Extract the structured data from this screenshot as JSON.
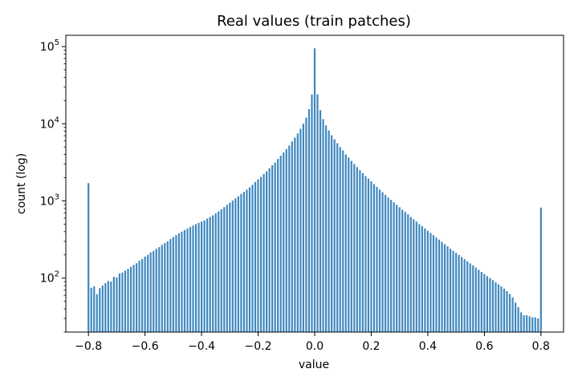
{
  "chart_data": {
    "type": "bar",
    "title": "Real values (train patches)",
    "xlabel": "value",
    "ylabel": "count (log)",
    "xlim": [
      -0.88,
      0.88
    ],
    "ylim": [
      20,
      140000
    ],
    "yscale": "log",
    "x_ticks": [
      -0.8,
      -0.6,
      -0.4,
      -0.2,
      0.0,
      0.2,
      0.4,
      0.6,
      0.8
    ],
    "x_tick_labels": [
      "−0.8",
      "−0.6",
      "−0.4",
      "−0.2",
      "0.0",
      "0.2",
      "0.4",
      "0.6",
      "0.8"
    ],
    "y_ticks": [
      {
        "value": 100,
        "base": "10",
        "exp": "2"
      },
      {
        "value": 1000,
        "base": "10",
        "exp": "3"
      },
      {
        "value": 10000,
        "base": "10",
        "exp": "4"
      },
      {
        "value": 100000,
        "base": "10",
        "exp": "5"
      }
    ],
    "bar_color": "#3f88bf",
    "bin_width": 0.00625,
    "grid": false,
    "series": [
      {
        "values": [
          {
            "x": -0.8,
            "y": 1700
          },
          {
            "x": -0.79,
            "y": 75
          },
          {
            "x": -0.78,
            "y": 78
          },
          {
            "x": -0.77,
            "y": 62
          },
          {
            "x": -0.76,
            "y": 74
          },
          {
            "x": -0.75,
            "y": 80
          },
          {
            "x": -0.74,
            "y": 86
          },
          {
            "x": -0.73,
            "y": 92
          },
          {
            "x": -0.72,
            "y": 90
          },
          {
            "x": -0.71,
            "y": 104
          },
          {
            "x": -0.7,
            "y": 102
          },
          {
            "x": -0.69,
            "y": 115
          },
          {
            "x": -0.68,
            "y": 118
          },
          {
            "x": -0.67,
            "y": 125
          },
          {
            "x": -0.66,
            "y": 132
          },
          {
            "x": -0.65,
            "y": 140
          },
          {
            "x": -0.64,
            "y": 148
          },
          {
            "x": -0.63,
            "y": 156
          },
          {
            "x": -0.62,
            "y": 168
          },
          {
            "x": -0.61,
            "y": 176
          },
          {
            "x": -0.6,
            "y": 190
          },
          {
            "x": -0.59,
            "y": 200
          },
          {
            "x": -0.58,
            "y": 215
          },
          {
            "x": -0.57,
            "y": 225
          },
          {
            "x": -0.56,
            "y": 240
          },
          {
            "x": -0.55,
            "y": 252
          },
          {
            "x": -0.54,
            "y": 270
          },
          {
            "x": -0.53,
            "y": 285
          },
          {
            "x": -0.52,
            "y": 300
          },
          {
            "x": -0.51,
            "y": 320
          },
          {
            "x": -0.5,
            "y": 340
          },
          {
            "x": -0.49,
            "y": 360
          },
          {
            "x": -0.48,
            "y": 380
          },
          {
            "x": -0.47,
            "y": 400
          },
          {
            "x": -0.46,
            "y": 420
          },
          {
            "x": -0.45,
            "y": 440
          },
          {
            "x": -0.44,
            "y": 460
          },
          {
            "x": -0.43,
            "y": 480
          },
          {
            "x": -0.42,
            "y": 500
          },
          {
            "x": -0.41,
            "y": 520
          },
          {
            "x": -0.4,
            "y": 540
          },
          {
            "x": -0.39,
            "y": 560
          },
          {
            "x": -0.38,
            "y": 590
          },
          {
            "x": -0.37,
            "y": 620
          },
          {
            "x": -0.36,
            "y": 650
          },
          {
            "x": -0.35,
            "y": 690
          },
          {
            "x": -0.34,
            "y": 730
          },
          {
            "x": -0.33,
            "y": 780
          },
          {
            "x": -0.32,
            "y": 830
          },
          {
            "x": -0.31,
            "y": 890
          },
          {
            "x": -0.3,
            "y": 950
          },
          {
            "x": -0.29,
            "y": 1010
          },
          {
            "x": -0.28,
            "y": 1080
          },
          {
            "x": -0.27,
            "y": 1150
          },
          {
            "x": -0.26,
            "y": 1230
          },
          {
            "x": -0.25,
            "y": 1310
          },
          {
            "x": -0.24,
            "y": 1400
          },
          {
            "x": -0.23,
            "y": 1500
          },
          {
            "x": -0.22,
            "y": 1620
          },
          {
            "x": -0.21,
            "y": 1760
          },
          {
            "x": -0.2,
            "y": 1900
          },
          {
            "x": -0.19,
            "y": 2050
          },
          {
            "x": -0.18,
            "y": 2230
          },
          {
            "x": -0.17,
            "y": 2420
          },
          {
            "x": -0.16,
            "y": 2650
          },
          {
            "x": -0.15,
            "y": 2900
          },
          {
            "x": -0.14,
            "y": 3150
          },
          {
            "x": -0.13,
            "y": 3500
          },
          {
            "x": -0.12,
            "y": 3850
          },
          {
            "x": -0.11,
            "y": 4250
          },
          {
            "x": -0.1,
            "y": 4700
          },
          {
            "x": -0.09,
            "y": 5200
          },
          {
            "x": -0.08,
            "y": 5900
          },
          {
            "x": -0.07,
            "y": 6600
          },
          {
            "x": -0.06,
            "y": 7500
          },
          {
            "x": -0.05,
            "y": 8600
          },
          {
            "x": -0.04,
            "y": 10000
          },
          {
            "x": -0.03,
            "y": 12000
          },
          {
            "x": -0.02,
            "y": 15500
          },
          {
            "x": -0.01,
            "y": 24000
          },
          {
            "x": 0.0,
            "y": 95000
          },
          {
            "x": 0.01,
            "y": 24000
          },
          {
            "x": 0.02,
            "y": 15000
          },
          {
            "x": 0.03,
            "y": 11500
          },
          {
            "x": 0.04,
            "y": 9500
          },
          {
            "x": 0.05,
            "y": 8200
          },
          {
            "x": 0.06,
            "y": 7100
          },
          {
            "x": 0.07,
            "y": 6300
          },
          {
            "x": 0.08,
            "y": 5600
          },
          {
            "x": 0.09,
            "y": 5000
          },
          {
            "x": 0.1,
            "y": 4500
          },
          {
            "x": 0.11,
            "y": 4000
          },
          {
            "x": 0.12,
            "y": 3650
          },
          {
            "x": 0.13,
            "y": 3300
          },
          {
            "x": 0.14,
            "y": 3000
          },
          {
            "x": 0.15,
            "y": 2750
          },
          {
            "x": 0.16,
            "y": 2500
          },
          {
            "x": 0.17,
            "y": 2300
          },
          {
            "x": 0.18,
            "y": 2100
          },
          {
            "x": 0.19,
            "y": 1950
          },
          {
            "x": 0.2,
            "y": 1800
          },
          {
            "x": 0.21,
            "y": 1650
          },
          {
            "x": 0.22,
            "y": 1520
          },
          {
            "x": 0.23,
            "y": 1400
          },
          {
            "x": 0.24,
            "y": 1300
          },
          {
            "x": 0.25,
            "y": 1200
          },
          {
            "x": 0.26,
            "y": 1110
          },
          {
            "x": 0.27,
            "y": 1030
          },
          {
            "x": 0.28,
            "y": 960
          },
          {
            "x": 0.29,
            "y": 890
          },
          {
            "x": 0.3,
            "y": 830
          },
          {
            "x": 0.31,
            "y": 770
          },
          {
            "x": 0.32,
            "y": 720
          },
          {
            "x": 0.33,
            "y": 670
          },
          {
            "x": 0.34,
            "y": 620
          },
          {
            "x": 0.35,
            "y": 580
          },
          {
            "x": 0.36,
            "y": 540
          },
          {
            "x": 0.37,
            "y": 500
          },
          {
            "x": 0.38,
            "y": 470
          },
          {
            "x": 0.39,
            "y": 440
          },
          {
            "x": 0.4,
            "y": 410
          },
          {
            "x": 0.41,
            "y": 385
          },
          {
            "x": 0.42,
            "y": 360
          },
          {
            "x": 0.43,
            "y": 335
          },
          {
            "x": 0.44,
            "y": 315
          },
          {
            "x": 0.45,
            "y": 295
          },
          {
            "x": 0.46,
            "y": 275
          },
          {
            "x": 0.47,
            "y": 258
          },
          {
            "x": 0.48,
            "y": 240
          },
          {
            "x": 0.49,
            "y": 225
          },
          {
            "x": 0.5,
            "y": 212
          },
          {
            "x": 0.51,
            "y": 200
          },
          {
            "x": 0.52,
            "y": 188
          },
          {
            "x": 0.53,
            "y": 176
          },
          {
            "x": 0.54,
            "y": 165
          },
          {
            "x": 0.55,
            "y": 155
          },
          {
            "x": 0.56,
            "y": 146
          },
          {
            "x": 0.57,
            "y": 137
          },
          {
            "x": 0.58,
            "y": 128
          },
          {
            "x": 0.59,
            "y": 120
          },
          {
            "x": 0.6,
            "y": 113
          },
          {
            "x": 0.61,
            "y": 106
          },
          {
            "x": 0.62,
            "y": 100
          },
          {
            "x": 0.63,
            "y": 94
          },
          {
            "x": 0.64,
            "y": 88
          },
          {
            "x": 0.65,
            "y": 83
          },
          {
            "x": 0.66,
            "y": 78
          },
          {
            "x": 0.67,
            "y": 73
          },
          {
            "x": 0.68,
            "y": 68
          },
          {
            "x": 0.69,
            "y": 62
          },
          {
            "x": 0.7,
            "y": 56
          },
          {
            "x": 0.71,
            "y": 48
          },
          {
            "x": 0.72,
            "y": 42
          },
          {
            "x": 0.73,
            "y": 36
          },
          {
            "x": 0.74,
            "y": 33
          },
          {
            "x": 0.75,
            "y": 33
          },
          {
            "x": 0.76,
            "y": 32
          },
          {
            "x": 0.77,
            "y": 31
          },
          {
            "x": 0.78,
            "y": 31
          },
          {
            "x": 0.79,
            "y": 30
          },
          {
            "x": 0.8,
            "y": 820
          }
        ]
      }
    ]
  }
}
